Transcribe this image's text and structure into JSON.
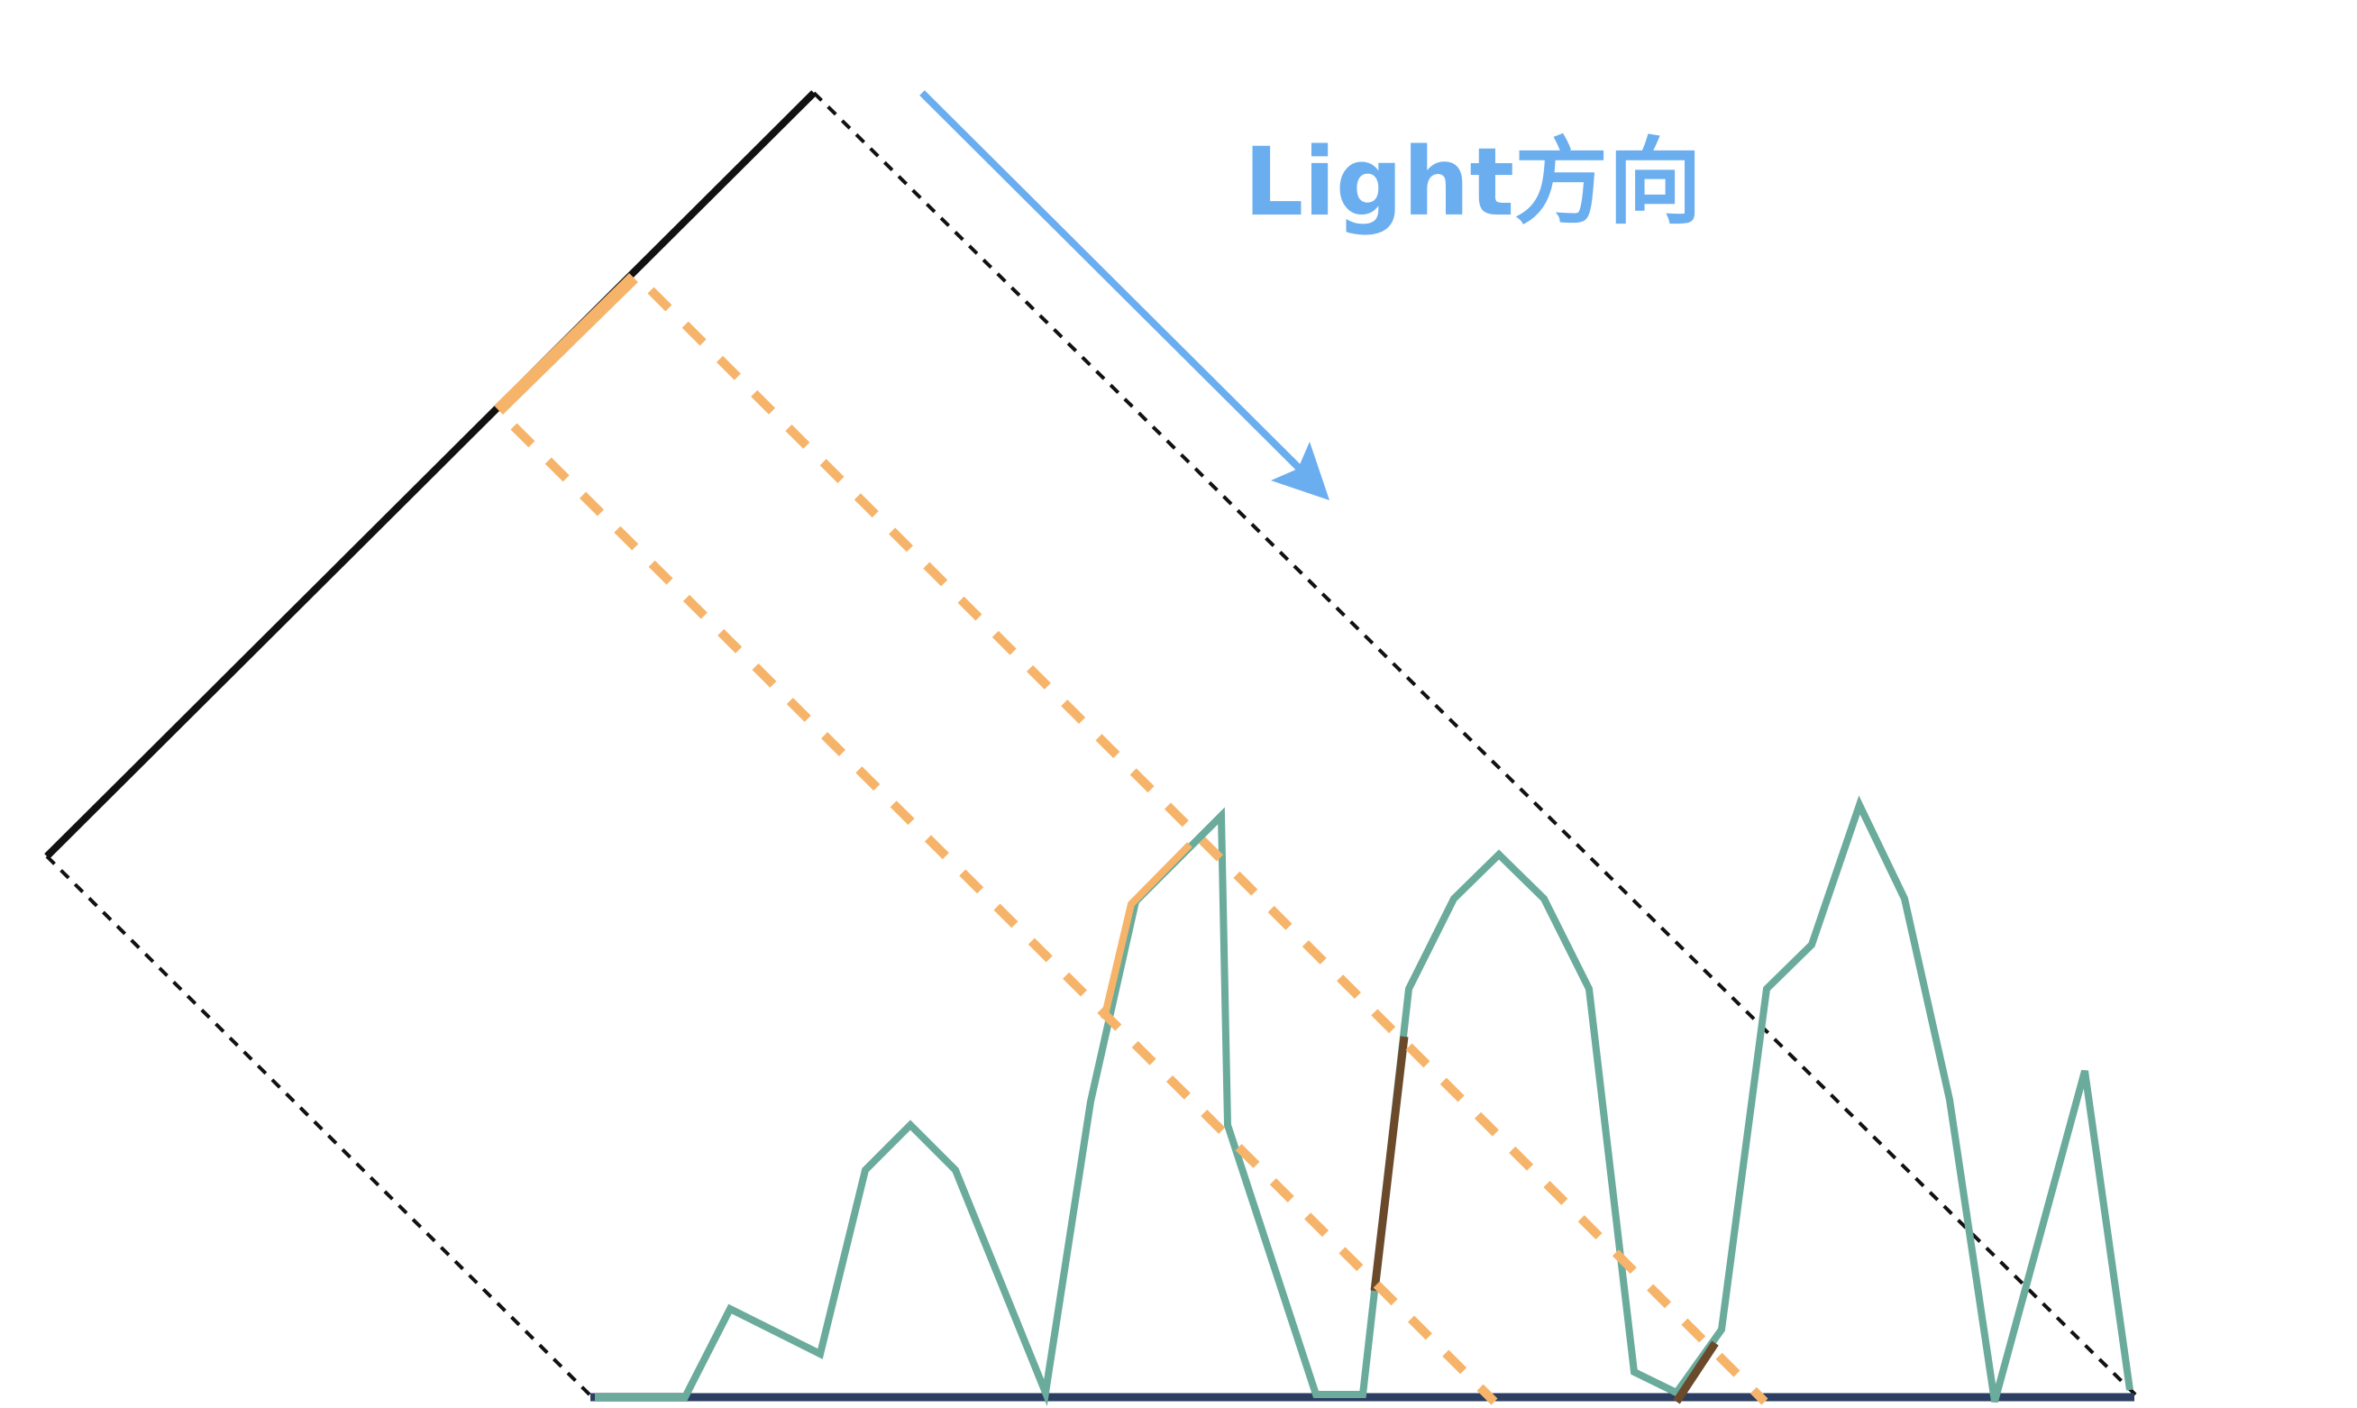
{
  "light_label": "Light方向",
  "colors": {
    "shadow_map_plane": "#111111",
    "frustum_boundary": "#111111",
    "light_arrow": "#6aaef0",
    "texel_highlight": "#f6b46a",
    "texel_projection": "#f6b46a",
    "terrain": "#6aab9c",
    "ground": "#2c3e62",
    "shadowed_segment": "#6b4a2b",
    "background": "#ffffff"
  }
}
